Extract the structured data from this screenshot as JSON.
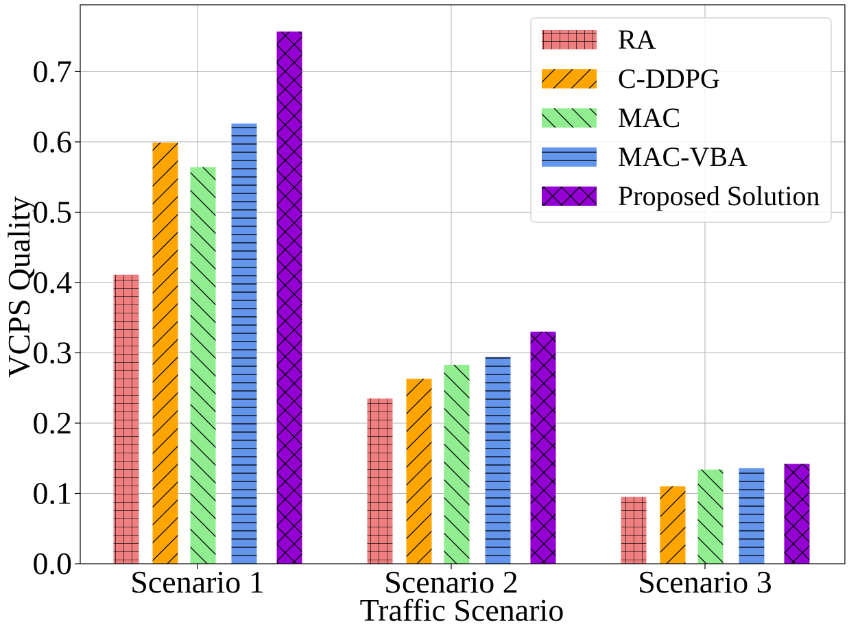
{
  "chart_data": {
    "type": "bar",
    "title": "",
    "xlabel": "Traffic Scenario",
    "ylabel": "VCPS Quality",
    "categories": [
      "Scenario 1",
      "Scenario 2",
      "Scenario 3"
    ],
    "ylim": [
      0.0,
      0.795
    ],
    "yticks": [
      0.0,
      0.1,
      0.2,
      0.3,
      0.4,
      0.5,
      0.6,
      0.7
    ],
    "ytick_labels": [
      "0.0",
      "0.1",
      "0.2",
      "0.3",
      "0.4",
      "0.5",
      "0.6",
      "0.7"
    ],
    "grid": true,
    "legend_position": "top-right",
    "series": [
      {
        "name": "RA",
        "color": "#F08080",
        "hatch": "grid",
        "values": [
          0.411,
          0.235,
          0.095
        ]
      },
      {
        "name": "C-DDPG",
        "color": "#FFA500",
        "hatch": "diagonal-forward",
        "values": [
          0.599,
          0.263,
          0.11
        ]
      },
      {
        "name": "MAC",
        "color": "#90EE90",
        "hatch": "diagonal-back",
        "values": [
          0.564,
          0.283,
          0.134
        ]
      },
      {
        "name": "MAC-VBA",
        "color": "#6495ED",
        "hatch": "horizontal",
        "values": [
          0.626,
          0.294,
          0.136
        ]
      },
      {
        "name": "Proposed Solution",
        "color": "#9400D3",
        "hatch": "crosshatch",
        "values": [
          0.757,
          0.33,
          0.142
        ]
      }
    ]
  }
}
